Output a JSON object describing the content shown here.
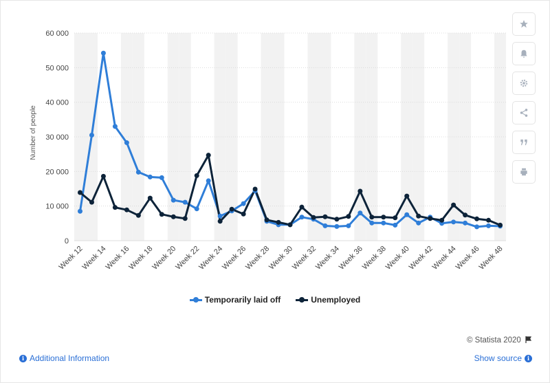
{
  "chart_data": {
    "type": "line",
    "title": "",
    "xlabel": "",
    "ylabel": "Number of people",
    "ylim": [
      0,
      60000
    ],
    "yticks": [
      0,
      10000,
      20000,
      30000,
      40000,
      50000,
      60000
    ],
    "ytick_labels": [
      "0",
      "10 000",
      "20 000",
      "30 000",
      "40 000",
      "50 000",
      "60 000"
    ],
    "grid": true,
    "legend_position": "bottom",
    "x_labels": [
      "Week 12",
      "Week 14",
      "Week 16",
      "Week 18",
      "Week 20",
      "Week 22",
      "Week 24",
      "Week 26",
      "Week 28",
      "Week 30",
      "Week 32",
      "Week 34",
      "Week 36",
      "Week 38",
      "Week 40",
      "Week 42",
      "Week 44",
      "Week 46",
      "Week 48"
    ],
    "categories": [
      "Week 12",
      "Week 13",
      "Week 14",
      "Week 15",
      "Week 16",
      "Week 17",
      "Week 18",
      "Week 19",
      "Week 20",
      "Week 21",
      "Week 22",
      "Week 23",
      "Week 24",
      "Week 25",
      "Week 26",
      "Week 27",
      "Week 28",
      "Week 29",
      "Week 30",
      "Week 31",
      "Week 32",
      "Week 33",
      "Week 34",
      "Week 35",
      "Week 36",
      "Week 37",
      "Week 38",
      "Week 39",
      "Week 40",
      "Week 41",
      "Week 42",
      "Week 43",
      "Week 44",
      "Week 45",
      "Week 46",
      "Week 47",
      "Week 48"
    ],
    "series": [
      {
        "name": "Temporarily laid off",
        "color": "#2f7ed8",
        "values": [
          8500,
          30500,
          54200,
          33000,
          28300,
          19800,
          18400,
          18200,
          11700,
          11100,
          9200,
          17300,
          7100,
          8600,
          10700,
          14400,
          5600,
          4600,
          4600,
          6800,
          6200,
          4300,
          4100,
          4300,
          8000,
          5100,
          5100,
          4500,
          7500,
          5100,
          6800,
          5000,
          5400,
          5100,
          4000,
          4300,
          4200
        ]
      },
      {
        "name": "Unemployed",
        "color": "#0d2339",
        "values": [
          13900,
          11100,
          18600,
          9600,
          8900,
          7300,
          12300,
          7600,
          6900,
          6400,
          18800,
          24700,
          5600,
          9100,
          7700,
          14900,
          6000,
          5300,
          4600,
          9700,
          6700,
          6900,
          6200,
          7000,
          14300,
          6800,
          6800,
          6600,
          12900,
          7100,
          6400,
          5900,
          10300,
          7400,
          6300,
          5900,
          4500
        ]
      }
    ]
  },
  "legend": {
    "items": [
      {
        "label": "Temporarily laid off",
        "color": "#2f7ed8"
      },
      {
        "label": "Unemployed",
        "color": "#0d2339"
      }
    ]
  },
  "sidebar": {
    "buttons": [
      {
        "icon": "star-icon"
      },
      {
        "icon": "bell-icon"
      },
      {
        "icon": "gear-icon"
      },
      {
        "icon": "share-icon"
      },
      {
        "icon": "quote-icon"
      },
      {
        "icon": "print-icon"
      }
    ]
  },
  "footer": {
    "credits": "© Statista 2020",
    "additional_info": "Additional Information",
    "show_source": "Show source"
  }
}
